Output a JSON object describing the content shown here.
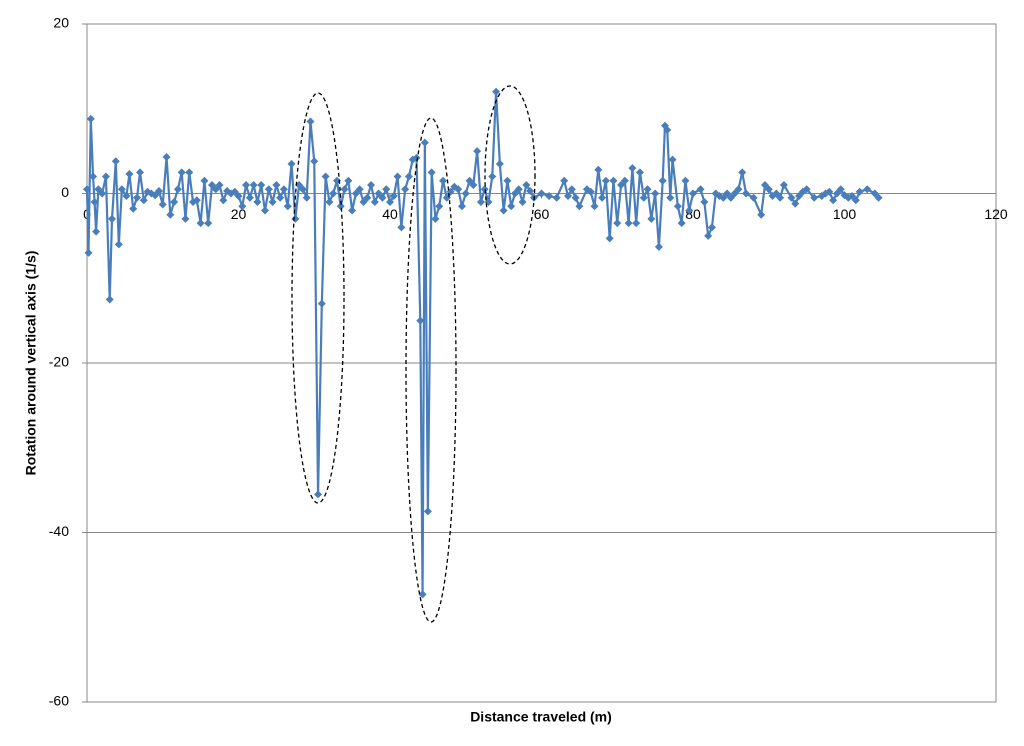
{
  "chart_data": {
    "type": "line",
    "x_label": "Distance traveled (m)",
    "y_label": "Rotation around vertical axis (1/s)",
    "color": "#4a7ebb",
    "marker": "diamond",
    "grid": true,
    "xlim": [
      0,
      120
    ],
    "xticks": [
      0,
      20,
      40,
      60,
      80,
      100,
      120
    ],
    "ylim": [
      -60,
      20
    ],
    "yticks": [
      20,
      0,
      -20,
      -40,
      -60
    ],
    "x": [
      0.0,
      0.2,
      0.5,
      0.8,
      1.0,
      1.2,
      1.5,
      2,
      2.5,
      3,
      3.3,
      3.8,
      4.2,
      4.6,
      5.2,
      5.6,
      6.1,
      6.6,
      7,
      7.5,
      8,
      8.5,
      9,
      9.5,
      10,
      10.5,
      11,
      11.5,
      12,
      12.5,
      13,
      13.5,
      14,
      14.5,
      15,
      15.5,
      16,
      16.5,
      17,
      17.5,
      18,
      18.5,
      19,
      19.5,
      20,
      20.5,
      21,
      21.5,
      22,
      22.5,
      23,
      23.5,
      24,
      24.5,
      25,
      25.5,
      26,
      26.5,
      27,
      27.5,
      28,
      28.5,
      29,
      29.5,
      30,
      30.5,
      31,
      31.5,
      32,
      32.5,
      33,
      33.5,
      34,
      34.5,
      35,
      35.5,
      36,
      36.5,
      37,
      37.5,
      38,
      38.5,
      39,
      39.5,
      40,
      40.5,
      41,
      41.5,
      42,
      42.5,
      43,
      43.5,
      44,
      44.3,
      44.6,
      45,
      45.5,
      46,
      46.5,
      47,
      47.5,
      48,
      48.5,
      49,
      49.5,
      50,
      50.5,
      51,
      51.5,
      52,
      52.5,
      53,
      53.5,
      54,
      54.5,
      55,
      55.5,
      56,
      56.5,
      57,
      57.5,
      58,
      58.5,
      59,
      60,
      61,
      62,
      63,
      63.5,
      64,
      64.5,
      65,
      66,
      66.5,
      67,
      67.5,
      68,
      68.5,
      69,
      69.5,
      70,
      70.5,
      71,
      71.5,
      72,
      72.5,
      73,
      73.5,
      74,
      74.5,
      75,
      75.5,
      76,
      76.3,
      76.6,
      77,
      77.3,
      78,
      78.5,
      79,
      79.5,
      80,
      81,
      81.5,
      82,
      82.5,
      83,
      83.5,
      84,
      84.5,
      85,
      85.5,
      86,
      86.5,
      87,
      88,
      89,
      89.5,
      90,
      90.5,
      91,
      91.5,
      92,
      93,
      93.5,
      94,
      94.5,
      95,
      96,
      97,
      97.5,
      98,
      98.5,
      99,
      99.5,
      100,
      100.5,
      101,
      101.5,
      102,
      103,
      104,
      104.5
    ],
    "values": [
      0.5,
      -7,
      8.8,
      2,
      -1,
      -4.5,
      0.5,
      0,
      2,
      -12.5,
      -3,
      3.8,
      -6,
      0.5,
      -0.3,
      2.3,
      -1.8,
      -0.5,
      2.5,
      -0.8,
      0.2,
      0,
      -0.2,
      0.3,
      -1.3,
      4.3,
      -2.5,
      -1,
      0.5,
      2.5,
      -3,
      2.5,
      -1,
      -0.8,
      -3.5,
      1.5,
      -3.5,
      1,
      0.5,
      1,
      -0.8,
      0.3,
      0,
      0.2,
      -0.3,
      -1.5,
      1,
      -0.5,
      1,
      -1,
      1,
      -2,
      0.5,
      -1,
      1,
      -0.5,
      0.5,
      -1.5,
      3.5,
      -3,
      1,
      0.5,
      -0.5,
      8.5,
      3.8,
      -35.5,
      -13,
      2,
      -1,
      0,
      1.5,
      -1.5,
      0.5,
      1.5,
      -2,
      0,
      0.5,
      -1,
      -0.5,
      1,
      -1,
      0,
      -0.5,
      0.5,
      -1,
      -0.3,
      2,
      -4,
      0.5,
      2,
      4,
      4.2,
      -15,
      -47.3,
      6,
      -37.5,
      2.5,
      -3,
      -1.5,
      1.5,
      -0.5,
      0.2,
      0.8,
      0.5,
      -1.5,
      0,
      1.5,
      1,
      5,
      -1,
      0.5,
      -1,
      2,
      12,
      3.5,
      -2,
      1.5,
      -1.5,
      0,
      0.5,
      -1,
      1,
      0.3,
      -0.5,
      0,
      -0.3,
      -0.5,
      1.5,
      -0.3,
      0.5,
      -0.5,
      -1.5,
      0.5,
      0.2,
      -1.5,
      2.8,
      -0.5,
      1.5,
      -5.3,
      1.5,
      -3.5,
      1,
      1.5,
      -3.5,
      3,
      -3.5,
      2.5,
      -0.5,
      0.5,
      -3,
      0,
      -6.3,
      1.5,
      8,
      7.5,
      -0.5,
      4,
      -1.5,
      -3.5,
      1.5,
      -2,
      0,
      0.5,
      -1,
      -5,
      -4,
      0,
      -0.3,
      -0.5,
      0,
      -0.5,
      0,
      0.5,
      2.5,
      0,
      -0.5,
      -2.5,
      1,
      0.5,
      -0.3,
      0,
      -0.5,
      1,
      -0.5,
      -1.2,
      -0.3,
      0.2,
      0.5,
      -0.5,
      -0.3,
      0,
      0.2,
      -0.8,
      0,
      0.5,
      -0.2,
      -0.5,
      -0.3,
      -0.8,
      0.2,
      0.5,
      0,
      -0.5
    ]
  }
}
